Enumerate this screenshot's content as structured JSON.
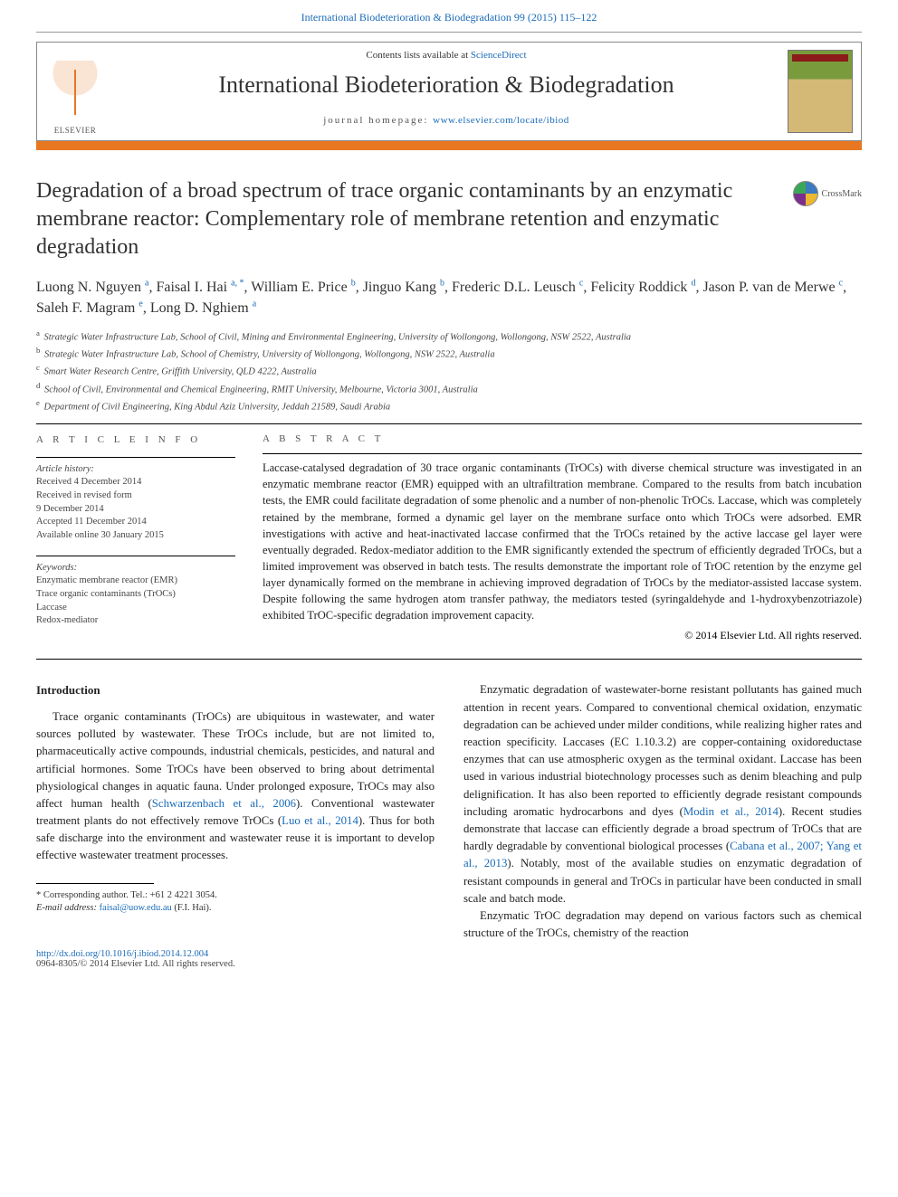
{
  "top_link": {
    "text": "International Biodeterioration & Biodegradation 99 (2015) 115–122",
    "color": "#1a6bb8",
    "fontsize": 12
  },
  "header": {
    "contents_prefix": "Contents lists available at ",
    "contents_link": "ScienceDirect",
    "journal_name": "International Biodeterioration & Biodegradation",
    "homepage_prefix": "journal homepage: ",
    "homepage_link": "www.elsevier.com/locate/ibiod",
    "publisher_label": "ELSEVIER",
    "bar_color": "#e87722"
  },
  "crossmark_label": "CrossMark",
  "title": "Degradation of a broad spectrum of trace organic contaminants by an enzymatic membrane reactor: Complementary role of membrane retention and enzymatic degradation",
  "title_fontsize": 24,
  "authors_html": "Luong N. Nguyen <sup>a</sup>, Faisal I. Hai <sup>a, *</sup>, William E. Price <sup>b</sup>, Jinguo Kang <sup>b</sup>, Frederic D.L. Leusch <sup>c</sup>, Felicity Roddick <sup>d</sup>, Jason P. van de Merwe <sup>c</sup>, Saleh F. Magram <sup>e</sup>, Long D. Nghiem <sup>a</sup>",
  "affiliations": [
    {
      "sup": "a",
      "text": "Strategic Water Infrastructure Lab, School of Civil, Mining and Environmental Engineering, University of Wollongong, Wollongong, NSW 2522, Australia"
    },
    {
      "sup": "b",
      "text": "Strategic Water Infrastructure Lab, School of Chemistry, University of Wollongong, Wollongong, NSW 2522, Australia"
    },
    {
      "sup": "c",
      "text": "Smart Water Research Centre, Griffith University, QLD 4222, Australia"
    },
    {
      "sup": "d",
      "text": "School of Civil, Environmental and Chemical Engineering, RMIT University, Melbourne, Victoria 3001, Australia"
    },
    {
      "sup": "e",
      "text": "Department of Civil Engineering, King Abdul Aziz University, Jeddah 21589, Saudi Arabia"
    }
  ],
  "article_info": {
    "heading": "A R T I C L E   I N F O",
    "history_label": "Article history:",
    "history": [
      "Received 4 December 2014",
      "Received in revised form",
      "9 December 2014",
      "Accepted 11 December 2014",
      "Available online 30 January 2015"
    ],
    "keywords_label": "Keywords:",
    "keywords": [
      "Enzymatic membrane reactor (EMR)",
      "Trace organic contaminants (TrOCs)",
      "Laccase",
      "Redox-mediator"
    ]
  },
  "abstract": {
    "heading": "A B S T R A C T",
    "text": "Laccase-catalysed degradation of 30 trace organic contaminants (TrOCs) with diverse chemical structure was investigated in an enzymatic membrane reactor (EMR) equipped with an ultrafiltration membrane. Compared to the results from batch incubation tests, the EMR could facilitate degradation of some phenolic and a number of non-phenolic TrOCs. Laccase, which was completely retained by the membrane, formed a dynamic gel layer on the membrane surface onto which TrOCs were adsorbed. EMR investigations with active and heat-inactivated laccase confirmed that the TrOCs retained by the active laccase gel layer were eventually degraded. Redox-mediator addition to the EMR significantly extended the spectrum of efficiently degraded TrOCs, but a limited improvement was observed in batch tests. The results demonstrate the important role of TrOC retention by the enzyme gel layer dynamically formed on the membrane in achieving improved degradation of TrOCs by the mediator-assisted laccase system. Despite following the same hydrogen atom transfer pathway, the mediators tested (syringaldehyde and 1-hydroxybenzotriazole) exhibited TrOC-specific degradation improvement capacity.",
    "copyright": "© 2014 Elsevier Ltd. All rights reserved."
  },
  "body": {
    "intro_heading": "Introduction",
    "left_paragraphs": [
      "Trace organic contaminants (TrOCs) are ubiquitous in wastewater, and water sources polluted by wastewater. These TrOCs include, but are not limited to, pharmaceutically active compounds, industrial chemicals, pesticides, and natural and artificial hormones. Some TrOCs have been observed to bring about detrimental physiological changes in aquatic fauna. Under prolonged exposure, TrOCs may also affect human health (<span class=\"cite\">Schwarzenbach et al., 2006</span>). Conventional wastewater treatment plants do not effectively remove TrOCs (<span class=\"cite\">Luo et al., 2014</span>). Thus for both safe discharge into the environment and wastewater reuse it is important to develop effective wastewater treatment processes."
    ],
    "right_paragraphs": [
      "Enzymatic degradation of wastewater-borne resistant pollutants has gained much attention in recent years. Compared to conventional chemical oxidation, enzymatic degradation can be achieved under milder conditions, while realizing higher rates and reaction specificity. Laccases (EC 1.10.3.2) are copper-containing oxidoreductase enzymes that can use atmospheric oxygen as the terminal oxidant. Laccase has been used in various industrial biotechnology processes such as denim bleaching and pulp delignification. It has also been reported to efficiently degrade resistant compounds including aromatic hydrocarbons and dyes (<span class=\"cite\">Modin et al., 2014</span>). Recent studies demonstrate that laccase can efficiently degrade a broad spectrum of TrOCs that are hardly degradable by conventional biological processes (<span class=\"cite\">Cabana et al., 2007; Yang et al., 2013</span>). Notably, most of the available studies on enzymatic degradation of resistant compounds in general and TrOCs in particular have been conducted in small scale and batch mode.",
      "Enzymatic TrOC degradation may depend on various factors such as chemical structure of the TrOCs, chemistry of the reaction"
    ]
  },
  "footnotes": {
    "corr_prefix": "* Corresponding author. Tel.: ",
    "corr_tel": "+61 2 4221 3054.",
    "email_label": "E-mail address: ",
    "email": "faisal@uow.edu.au",
    "email_suffix": " (F.I. Hai)."
  },
  "bottom": {
    "doi": "http://dx.doi.org/10.1016/j.ibiod.2014.12.004",
    "issn_line": "0964-8305/© 2014 Elsevier Ltd. All rights reserved."
  },
  "colors": {
    "link": "#1a6bb8",
    "accent": "#e87722",
    "text": "#222222",
    "rule": "#000000"
  }
}
